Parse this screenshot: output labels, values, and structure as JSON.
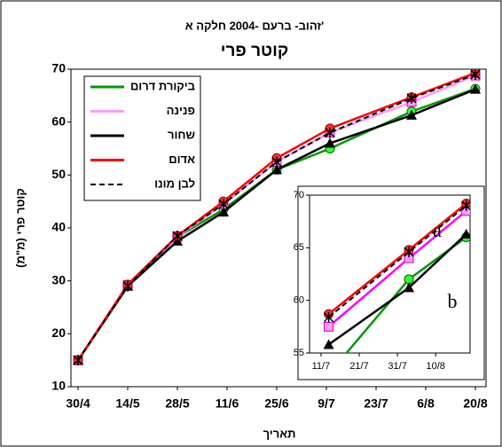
{
  "chart_data": [
    {
      "type": "line",
      "title": "קוטר פרי",
      "subtitle": "זהוב- ברעם -2004 חלקה א'",
      "x_label": "תאריך",
      "y_label": "קוטר פרי (מ\"מ)",
      "x": [
        0,
        14,
        28,
        41,
        56,
        71,
        94,
        112
      ],
      "xlim": [
        -2,
        115
      ],
      "xticks": [
        {
          "value": 0,
          "label": "30/4"
        },
        {
          "value": 14,
          "label": "14/5"
        },
        {
          "value": 28,
          "label": "28/5"
        },
        {
          "value": 42,
          "label": "11/6"
        },
        {
          "value": 56,
          "label": "25/6"
        },
        {
          "value": 70,
          "label": "9/7"
        },
        {
          "value": 84,
          "label": "23/7"
        },
        {
          "value": 98,
          "label": "6/8"
        },
        {
          "value": 112,
          "label": "20/8"
        }
      ],
      "ylim": [
        10,
        70
      ],
      "yticks": [
        10,
        20,
        30,
        40,
        50,
        60,
        70
      ],
      "legend": "top-left",
      "series": [
        {
          "name": "ביקורת דרום",
          "color": "#009900",
          "marker": "circle",
          "marker_color": "#33ff33",
          "values": [
            15,
            29,
            38.3,
            43.5,
            51,
            55,
            62,
            66.3
          ]
        },
        {
          "name": "פנינה",
          "color": "#ff99ff",
          "marker": "square",
          "marker_color": "#ff99ff",
          "values": [
            15,
            29.2,
            38.3,
            44.5,
            52.5,
            58,
            63.8,
            68.8
          ]
        },
        {
          "name": "שחור",
          "color": "#000000",
          "marker": "triangle",
          "marker_color": "#000000",
          "values": [
            15,
            29,
            37.5,
            43,
            51,
            56,
            61.3,
            66.2
          ]
        },
        {
          "name": "אדום",
          "color": "#ff0000",
          "marker": "circle",
          "marker_color": "#ff3333",
          "values": [
            15,
            29.3,
            38.5,
            45,
            53.2,
            58.8,
            64.7,
            69.3
          ]
        },
        {
          "name": "לבן מונו",
          "color": "#000000",
          "marker": "star",
          "dash": true,
          "marker_color": "#000000",
          "values": [
            15,
            29,
            38.5,
            44.5,
            52.5,
            58,
            64.5,
            69
          ]
        }
      ]
    },
    {
      "type": "line",
      "x": [
        74,
        95,
        110
      ],
      "xlim": [
        69,
        111
      ],
      "xticks": [
        {
          "value": 72,
          "label": "11/7"
        },
        {
          "value": 82,
          "label": "21/7"
        },
        {
          "value": 92,
          "label": "31/7"
        },
        {
          "value": 102,
          "label": "10/8"
        }
      ],
      "ylim": [
        55,
        70
      ],
      "yticks": [
        55,
        60,
        65,
        70
      ],
      "annotations": [
        "a",
        "b"
      ],
      "series": [
        {
          "color": "#009900",
          "marker": "circle",
          "marker_color": "#33ff33",
          "values": [
            53,
            62,
            66
          ]
        },
        {
          "color": "#ff00ff",
          "marker": "square",
          "marker_color": "#ff99ff",
          "values": [
            57.5,
            64,
            68.5
          ]
        },
        {
          "color": "#000000",
          "marker": "triangle",
          "marker_color": "#000000",
          "values": [
            55.8,
            61.2,
            66.3
          ]
        },
        {
          "color": "#ff0000",
          "marker": "circle",
          "marker_color": "#ff3333",
          "values": [
            58.7,
            64.8,
            69.2
          ]
        },
        {
          "color": "#000000",
          "marker": "star",
          "dash": true,
          "marker_color": "#000000",
          "values": [
            58.4,
            64.6,
            69
          ]
        }
      ]
    }
  ]
}
